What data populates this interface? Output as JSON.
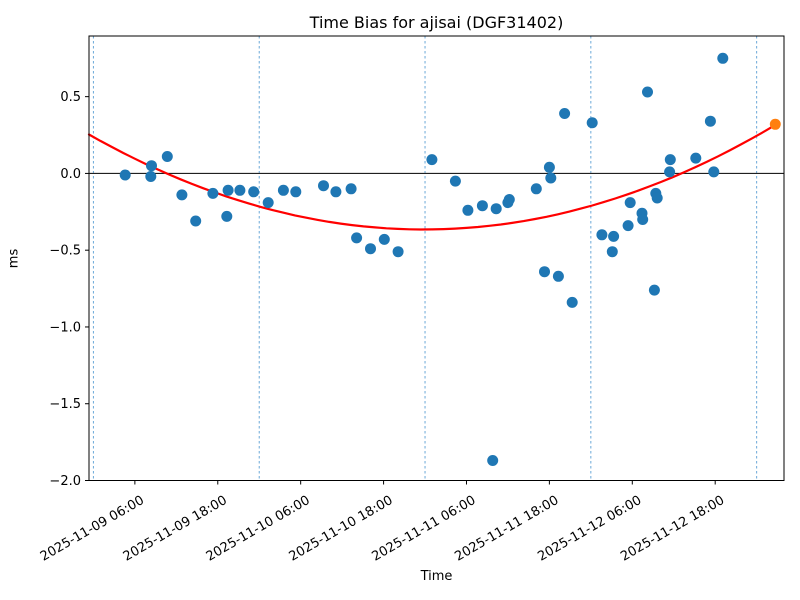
{
  "chart_data": {
    "type": "scatter",
    "title": "Time Bias for ajisai (DGF31402)",
    "xlabel": "Time",
    "ylabel": "ms",
    "x_unit": "hours since 2025-11-09 00:00",
    "xlim": [
      -0.64,
      99.96
    ],
    "ylim": [
      -2.0,
      0.895
    ],
    "grid": "vertical dashed lines at day boundaries only",
    "x_ticks": [
      {
        "t": 6,
        "label": "2025-11-09 06:00"
      },
      {
        "t": 18,
        "label": "2025-11-09 18:00"
      },
      {
        "t": 30,
        "label": "2025-11-10 06:00"
      },
      {
        "t": 42,
        "label": "2025-11-10 18:00"
      },
      {
        "t": 54,
        "label": "2025-11-11 06:00"
      },
      {
        "t": 66,
        "label": "2025-11-11 18:00"
      },
      {
        "t": 78,
        "label": "2025-11-12 06:00"
      },
      {
        "t": 90,
        "label": "2025-11-12 18:00"
      }
    ],
    "y_ticks": [
      {
        "v": 0.5,
        "label": "0.5"
      },
      {
        "v": 0.0,
        "label": "0.0"
      },
      {
        "v": -0.5,
        "label": "−0.5"
      },
      {
        "v": -1.0,
        "label": "−1.0"
      },
      {
        "v": -1.5,
        "label": "−1.5"
      },
      {
        "v": -2.0,
        "label": "−2.0"
      }
    ],
    "day_lines_t": [
      0,
      24,
      48,
      72,
      96
    ],
    "zero_line_v": 0.0,
    "series": [
      {
        "name": "observed-bias",
        "marker_color": "#1f77b4",
        "points": [
          [
            4.6,
            -0.01
          ],
          [
            8.3,
            -0.02
          ],
          [
            8.4,
            0.05
          ],
          [
            10.7,
            0.11
          ],
          [
            12.8,
            -0.14
          ],
          [
            14.8,
            -0.31
          ],
          [
            17.3,
            -0.13
          ],
          [
            19.3,
            -0.28
          ],
          [
            19.5,
            -0.11
          ],
          [
            21.2,
            -0.11
          ],
          [
            23.2,
            -0.12
          ],
          [
            25.3,
            -0.19
          ],
          [
            27.5,
            -0.11
          ],
          [
            29.3,
            -0.12
          ],
          [
            33.3,
            -0.08
          ],
          [
            35.1,
            -0.12
          ],
          [
            37.3,
            -0.1
          ],
          [
            38.1,
            -0.42
          ],
          [
            40.1,
            -0.49
          ],
          [
            42.1,
            -0.43
          ],
          [
            44.1,
            -0.51
          ],
          [
            49.0,
            0.09
          ],
          [
            52.4,
            -0.05
          ],
          [
            54.2,
            -0.24
          ],
          [
            56.3,
            -0.21
          ],
          [
            57.8,
            -1.87
          ],
          [
            58.3,
            -0.23
          ],
          [
            60.0,
            -0.19
          ],
          [
            60.2,
            -0.17
          ],
          [
            64.1,
            -0.1
          ],
          [
            65.3,
            -0.64
          ],
          [
            66.0,
            0.04
          ],
          [
            66.2,
            -0.03
          ],
          [
            67.3,
            -0.67
          ],
          [
            68.2,
            0.39
          ],
          [
            69.3,
            -0.84
          ],
          [
            72.2,
            0.33
          ],
          [
            73.6,
            -0.4
          ],
          [
            75.1,
            -0.51
          ],
          [
            75.3,
            -0.41
          ],
          [
            77.4,
            -0.34
          ],
          [
            77.7,
            -0.19
          ],
          [
            79.4,
            -0.26
          ],
          [
            79.5,
            -0.3
          ],
          [
            80.2,
            0.53
          ],
          [
            81.2,
            -0.76
          ],
          [
            81.4,
            -0.13
          ],
          [
            81.6,
            -0.16
          ],
          [
            83.4,
            0.01
          ],
          [
            83.5,
            0.09
          ],
          [
            87.2,
            0.1
          ],
          [
            89.3,
            0.34
          ],
          [
            89.8,
            0.01
          ],
          [
            91.1,
            0.75
          ]
        ]
      },
      {
        "name": "predicted-bias",
        "marker_color": "#ff7f0e",
        "points": [
          [
            98.7,
            0.32
          ]
        ]
      }
    ],
    "fit_curve": {
      "name": "quadratic-fit",
      "color": "#ff0000",
      "a": 0.000263,
      "t_vertex": 47.85,
      "v_vertex": -0.365,
      "t_start": -0.64,
      "t_end": 98.7
    },
    "colors": {
      "scatter": "#1f77b4",
      "prediction": "#ff7f0e",
      "fit": "#ff0000",
      "day_line": "#5b9fd4",
      "zero_line": "#000000",
      "spine": "#000000"
    }
  }
}
